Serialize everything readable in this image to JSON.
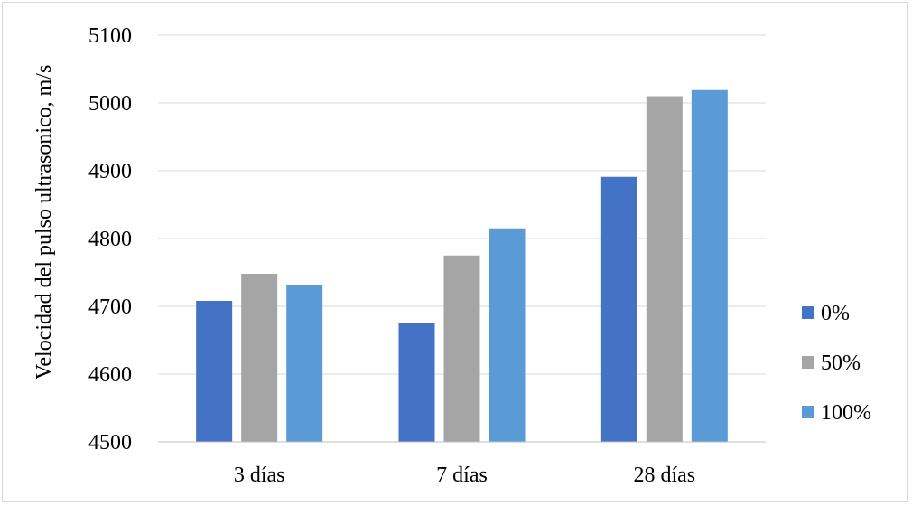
{
  "chart_data": {
    "type": "bar",
    "title": "",
    "xlabel": "",
    "ylabel": "Velocidad del pulso ultrasonico, m/s",
    "ylim": [
      4500,
      5100
    ],
    "yticks": [
      4500,
      4600,
      4700,
      4800,
      4900,
      5000,
      5100
    ],
    "grid": true,
    "legend_position": "right",
    "categories": [
      "3 días",
      "7 días",
      "28 días"
    ],
    "series": [
      {
        "name": "0%",
        "color": "#4472C4",
        "values": [
          4708,
          4676,
          4891
        ]
      },
      {
        "name": "50%",
        "color": "#A5A5A5",
        "values": [
          4748,
          4775,
          5010
        ]
      },
      {
        "name": "100%",
        "color": "#5B9BD5",
        "values": [
          4732,
          4815,
          5019
        ]
      }
    ]
  }
}
